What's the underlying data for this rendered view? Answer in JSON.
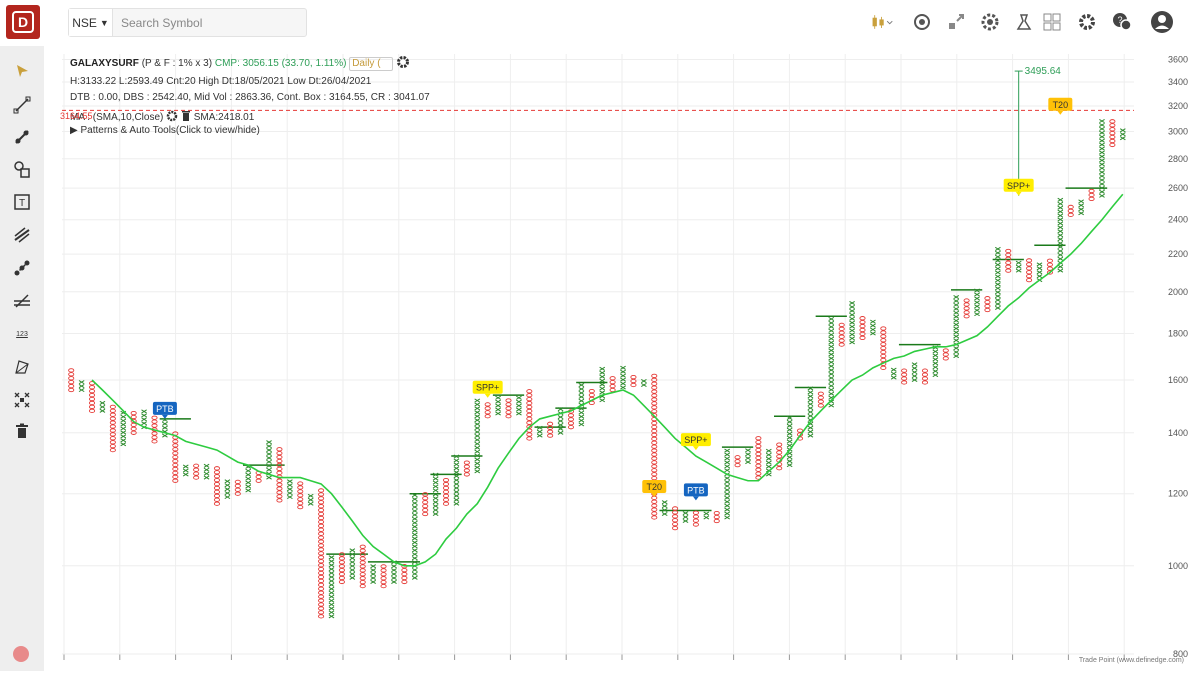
{
  "topbar": {
    "exchange": "NSE",
    "search_placeholder": "Search Symbol",
    "icons": [
      "candlestick-chart-icon",
      "replay-icon",
      "expand-icon",
      "settings-badge-icon",
      "layout-icon",
      "scanner-icon",
      "grid-icon",
      "gear-icon",
      "chat-icon",
      "user-icon"
    ]
  },
  "sidebar": {
    "tools": [
      "cursor-tool-icon",
      "line-tool-icon",
      "trend-tool-icon",
      "shape-tool-icon",
      "text-tool-icon",
      "fib-tool-icon",
      "ray-tool-icon",
      "channel-tool-icon",
      "measure-tool-icon",
      "projection-tool-icon",
      "pattern-tool-icon",
      "delete-tool-icon"
    ],
    "measure_label": "123"
  },
  "info": {
    "symbol": "GALAXYSURF",
    "spec": "(P & F : 1% x 3)",
    "cmp": "CMP: 3056.15 (33.70, 1.11%)",
    "interval": "Daily (",
    "line2": "H:3133.22 L:2593.49 Cnt:20 High Dt:18/05/2021 Low Dt:26/04/2021",
    "line3": "DTB : 0.00, DBS : 2542.40, Mid Vol : 2863.36, Cont. Box : 3164.55, CR : 3041.07",
    "ma_label": "MA : (SMA,10,Close)",
    "sma_value": "SMA:2418.01",
    "patterns": "Patterns & Auto Tools(Click to view/hide)",
    "price_tag": "3164.55"
  },
  "footer": "Trade Point (www.definedge.com)",
  "colors": {
    "x": "#2e8b2e",
    "o": "#e53935",
    "sma": "#2ecc40",
    "steps": "#1a7a1a",
    "ptb": "#1565c0",
    "spp": "#ffee00",
    "t20": "#ffc107",
    "cmp_line": "#e53935"
  },
  "chart_data": {
    "type": "point-and-figure",
    "y_scale": "log",
    "ylim": [
      800,
      3650
    ],
    "yticks": [
      800,
      1000,
      1200,
      1400,
      1600,
      1800,
      2000,
      2200,
      2400,
      2600,
      2800,
      3000,
      3200,
      3400,
      3600
    ],
    "current_price_line": 3164.55,
    "target_label": "3495.64",
    "target_value": 3495.64,
    "columns": [
      {
        "t": "O",
        "hi": 1640,
        "lo": 1560
      },
      {
        "t": "X",
        "hi": 1600,
        "lo": 1560
      },
      {
        "t": "O",
        "hi": 1590,
        "lo": 1480
      },
      {
        "t": "X",
        "hi": 1520,
        "lo": 1480
      },
      {
        "t": "O",
        "hi": 1500,
        "lo": 1340
      },
      {
        "t": "X",
        "hi": 1480,
        "lo": 1360
      },
      {
        "t": "O",
        "hi": 1480,
        "lo": 1400
      },
      {
        "t": "X",
        "hi": 1480,
        "lo": 1420
      },
      {
        "t": "O",
        "hi": 1460,
        "lo": 1370
      },
      {
        "t": "X",
        "hi": 1450,
        "lo": 1390
      },
      {
        "t": "O",
        "hi": 1410,
        "lo": 1240
      },
      {
        "t": "X",
        "hi": 1290,
        "lo": 1260
      },
      {
        "t": "O",
        "hi": 1290,
        "lo": 1250
      },
      {
        "t": "X",
        "hi": 1290,
        "lo": 1250
      },
      {
        "t": "O",
        "hi": 1280,
        "lo": 1170
      },
      {
        "t": "X",
        "hi": 1250,
        "lo": 1190
      },
      {
        "t": "O",
        "hi": 1240,
        "lo": 1200
      },
      {
        "t": "X",
        "hi": 1290,
        "lo": 1210
      },
      {
        "t": "O",
        "hi": 1270,
        "lo": 1240
      },
      {
        "t": "X",
        "hi": 1380,
        "lo": 1250
      },
      {
        "t": "O",
        "hi": 1350,
        "lo": 1180
      },
      {
        "t": "X",
        "hi": 1240,
        "lo": 1190
      },
      {
        "t": "O",
        "hi": 1240,
        "lo": 1160
      },
      {
        "t": "X",
        "hi": 1200,
        "lo": 1170
      },
      {
        "t": "O",
        "hi": 1220,
        "lo": 880
      },
      {
        "t": "X",
        "hi": 1030,
        "lo": 880
      },
      {
        "t": "O",
        "hi": 1030,
        "lo": 960
      },
      {
        "t": "X",
        "hi": 1050,
        "lo": 970
      },
      {
        "t": "O",
        "hi": 1050,
        "lo": 950
      },
      {
        "t": "X",
        "hi": 1000,
        "lo": 960
      },
      {
        "t": "O",
        "hi": 1000,
        "lo": 950
      },
      {
        "t": "X",
        "hi": 1010,
        "lo": 960
      },
      {
        "t": "O",
        "hi": 1000,
        "lo": 960
      },
      {
        "t": "X",
        "hi": 1200,
        "lo": 970
      },
      {
        "t": "O",
        "hi": 1200,
        "lo": 1140
      },
      {
        "t": "X",
        "hi": 1260,
        "lo": 1140
      },
      {
        "t": "O",
        "hi": 1250,
        "lo": 1170
      },
      {
        "t": "X",
        "hi": 1320,
        "lo": 1170
      },
      {
        "t": "O",
        "hi": 1300,
        "lo": 1260
      },
      {
        "t": "X",
        "hi": 1530,
        "lo": 1270
      },
      {
        "t": "O",
        "hi": 1510,
        "lo": 1460
      },
      {
        "t": "X",
        "hi": 1540,
        "lo": 1470
      },
      {
        "t": "O",
        "hi": 1520,
        "lo": 1460
      },
      {
        "t": "X",
        "hi": 1540,
        "lo": 1470
      },
      {
        "t": "O",
        "hi": 1560,
        "lo": 1380
      },
      {
        "t": "X",
        "hi": 1420,
        "lo": 1390
      },
      {
        "t": "O",
        "hi": 1440,
        "lo": 1390
      },
      {
        "t": "X",
        "hi": 1490,
        "lo": 1400
      },
      {
        "t": "O",
        "hi": 1480,
        "lo": 1420
      },
      {
        "t": "X",
        "hi": 1590,
        "lo": 1430
      },
      {
        "t": "O",
        "hi": 1570,
        "lo": 1510
      },
      {
        "t": "X",
        "hi": 1660,
        "lo": 1520
      },
      {
        "t": "O",
        "hi": 1620,
        "lo": 1560
      },
      {
        "t": "X",
        "hi": 1650,
        "lo": 1570
      },
      {
        "t": "O",
        "hi": 1620,
        "lo": 1580
      },
      {
        "t": "X",
        "hi": 1610,
        "lo": 1580
      },
      {
        "t": "O",
        "hi": 1620,
        "lo": 1130
      },
      {
        "t": "X",
        "hi": 1180,
        "lo": 1140
      },
      {
        "t": "O",
        "hi": 1160,
        "lo": 1100
      },
      {
        "t": "X",
        "hi": 1150,
        "lo": 1120
      },
      {
        "t": "O",
        "hi": 1150,
        "lo": 1110
      },
      {
        "t": "X",
        "hi": 1150,
        "lo": 1130
      },
      {
        "t": "O",
        "hi": 1150,
        "lo": 1120
      },
      {
        "t": "X",
        "hi": 1350,
        "lo": 1130
      },
      {
        "t": "O",
        "hi": 1320,
        "lo": 1290
      },
      {
        "t": "X",
        "hi": 1350,
        "lo": 1300
      },
      {
        "t": "O",
        "hi": 1390,
        "lo": 1250
      },
      {
        "t": "X",
        "hi": 1350,
        "lo": 1260
      },
      {
        "t": "O",
        "hi": 1360,
        "lo": 1280
      },
      {
        "t": "X",
        "hi": 1460,
        "lo": 1290
      },
      {
        "t": "O",
        "hi": 1420,
        "lo": 1380
      },
      {
        "t": "X",
        "hi": 1570,
        "lo": 1390
      },
      {
        "t": "O",
        "hi": 1560,
        "lo": 1500
      },
      {
        "t": "X",
        "hi": 1880,
        "lo": 1500
      },
      {
        "t": "O",
        "hi": 1850,
        "lo": 1750
      },
      {
        "t": "X",
        "hi": 1960,
        "lo": 1760
      },
      {
        "t": "O",
        "hi": 1880,
        "lo": 1780
      },
      {
        "t": "X",
        "hi": 1870,
        "lo": 1800
      },
      {
        "t": "O",
        "hi": 1840,
        "lo": 1650
      },
      {
        "t": "X",
        "hi": 1650,
        "lo": 1610
      },
      {
        "t": "O",
        "hi": 1650,
        "lo": 1590
      },
      {
        "t": "X",
        "hi": 1680,
        "lo": 1600
      },
      {
        "t": "O",
        "hi": 1650,
        "lo": 1590
      },
      {
        "t": "X",
        "hi": 1750,
        "lo": 1620
      },
      {
        "t": "O",
        "hi": 1740,
        "lo": 1690
      },
      {
        "t": "X",
        "hi": 1990,
        "lo": 1700
      },
      {
        "t": "O",
        "hi": 1960,
        "lo": 1880
      },
      {
        "t": "X",
        "hi": 2010,
        "lo": 1890
      },
      {
        "t": "O",
        "hi": 1970,
        "lo": 1910
      },
      {
        "t": "X",
        "hi": 2250,
        "lo": 1920
      },
      {
        "t": "O",
        "hi": 2220,
        "lo": 2110
      },
      {
        "t": "X",
        "hi": 2170,
        "lo": 2110
      },
      {
        "t": "O",
        "hi": 2170,
        "lo": 2060
      },
      {
        "t": "X",
        "hi": 2150,
        "lo": 2060
      },
      {
        "t": "O",
        "hi": 2170,
        "lo": 2100
      },
      {
        "t": "X",
        "hi": 2530,
        "lo": 2110
      },
      {
        "t": "O",
        "hi": 2500,
        "lo": 2430
      },
      {
        "t": "X",
        "hi": 2520,
        "lo": 2440
      },
      {
        "t": "O",
        "hi": 2590,
        "lo": 2530
      },
      {
        "t": "X",
        "hi": 3100,
        "lo": 2550
      },
      {
        "t": "O",
        "hi": 3090,
        "lo": 2900
      },
      {
        "t": "X",
        "hi": 3030,
        "lo": 2950
      }
    ],
    "sma": [
      1600,
      1560,
      1520,
      1480,
      1440,
      1420,
      1410,
      1400,
      1390,
      1370,
      1360,
      1350,
      1340,
      1320,
      1300,
      1290,
      1270,
      1260,
      1250,
      1250,
      1250,
      1240,
      1230,
      1200,
      1160,
      1120,
      1080,
      1050,
      1030,
      1010,
      1000,
      1000,
      1010,
      1030,
      1070,
      1100,
      1140,
      1170,
      1220,
      1280,
      1330,
      1380,
      1420,
      1450,
      1460,
      1470,
      1480,
      1500,
      1520,
      1540,
      1550,
      1560,
      1540,
      1500,
      1460,
      1420,
      1380,
      1350,
      1320,
      1300,
      1280,
      1260,
      1250,
      1240,
      1240,
      1270,
      1300,
      1340,
      1390,
      1440,
      1480,
      1520,
      1560,
      1600,
      1620,
      1650,
      1670,
      1690,
      1700,
      1720,
      1730,
      1740,
      1740,
      1750,
      1770,
      1790,
      1830,
      1880,
      1930,
      1970,
      2020,
      2060,
      2100,
      2150,
      2200,
      2260,
      2330,
      2400,
      2480,
      2560
    ],
    "step_lines": [
      {
        "from": 9,
        "to": 11,
        "value": 1450
      },
      {
        "from": 17,
        "to": 20,
        "value": 1290
      },
      {
        "from": 25,
        "to": 28,
        "value": 1030
      },
      {
        "from": 29,
        "to": 33,
        "value": 1010
      },
      {
        "from": 33,
        "to": 35,
        "value": 1200
      },
      {
        "from": 35,
        "to": 37,
        "value": 1260
      },
      {
        "from": 37,
        "to": 39,
        "value": 1320
      },
      {
        "from": 41,
        "to": 43,
        "value": 1540
      },
      {
        "from": 45,
        "to": 47,
        "value": 1420
      },
      {
        "from": 47,
        "to": 49,
        "value": 1490
      },
      {
        "from": 49,
        "to": 51,
        "value": 1590
      },
      {
        "from": 57,
        "to": 61,
        "value": 1150
      },
      {
        "from": 63,
        "to": 65,
        "value": 1350
      },
      {
        "from": 68,
        "to": 70,
        "value": 1460
      },
      {
        "from": 70,
        "to": 72,
        "value": 1570
      },
      {
        "from": 72,
        "to": 74,
        "value": 1880
      },
      {
        "from": 80,
        "to": 83,
        "value": 1750
      },
      {
        "from": 85,
        "to": 87,
        "value": 2010
      },
      {
        "from": 89,
        "to": 91,
        "value": 2170
      },
      {
        "from": 93,
        "to": 95,
        "value": 2250
      },
      {
        "from": 96,
        "to": 99,
        "value": 2600
      }
    ],
    "labels": [
      {
        "text": "PTB",
        "col": 9,
        "value": 1450,
        "kind": "ptb"
      },
      {
        "text": "SPP+",
        "col": 40,
        "value": 1530,
        "kind": "spp"
      },
      {
        "text": "T20",
        "col": 56,
        "value": 1190,
        "kind": "t20"
      },
      {
        "text": "PTB",
        "col": 60,
        "value": 1180,
        "kind": "ptb"
      },
      {
        "text": "SPP+",
        "col": 60,
        "value": 1340,
        "kind": "spp"
      },
      {
        "text": "SPP+",
        "col": 91,
        "value": 2550,
        "kind": "spp"
      },
      {
        "text": "T20",
        "col": 95,
        "value": 3130,
        "kind": "t20"
      }
    ]
  }
}
